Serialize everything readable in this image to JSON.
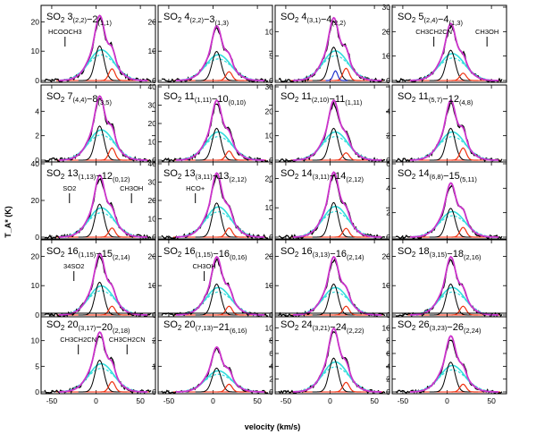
{
  "chart_data": {
    "type": "line",
    "xlabel": "velocity (km/s)",
    "ylabel": "T_A* (K)",
    "x_ticks": [
      -50,
      0,
      50
    ],
    "xlim": [
      -60,
      65
    ],
    "colors": {
      "observed": "#000000",
      "total_fit": "#cc33cc",
      "component_cyan": "#33dddd",
      "component_dashed": "#33dddd",
      "component_black": "#000000",
      "component_red": "#ee3311",
      "component_blue": "#2233cc",
      "baseline": "#ff2200"
    },
    "panels": [
      {
        "title": "SO2 3(2,2)−2(1,1)",
        "ylim": [
          0,
          25
        ],
        "yticks": [
          0,
          10,
          20
        ],
        "peak": 19,
        "bump": 4,
        "annotations": [
          {
            "text": "HCOOCH3",
            "v": -35
          }
        ]
      },
      {
        "title": "SO2 4(2,2)−3(1,3)",
        "ylim": [
          0,
          25
        ],
        "yticks": [
          0,
          10,
          20
        ],
        "peak": 16,
        "bump": 3,
        "annotations": []
      },
      {
        "title": "SO2 4(3,1)−4(2,2)",
        "ylim": [
          0,
          15
        ],
        "yticks": [
          0,
          5,
          10
        ],
        "peak": 11,
        "bump": 2.5,
        "annotations": []
      },
      {
        "title": "SO2 5(2,4)−4(1,3)",
        "ylim": [
          0,
          30
        ],
        "yticks": [
          0,
          10,
          20,
          30
        ],
        "peak": 20,
        "bump": 3,
        "annotations": [
          {
            "text": "CH3CH2CN",
            "v": -15
          },
          {
            "text": "CH3OH",
            "v": 45
          }
        ]
      },
      {
        "title": "SO2 7(4,4)−8(3,5)",
        "ylim": [
          0,
          6
        ],
        "yticks": [
          0,
          2,
          4
        ],
        "peak": 4.5,
        "bump": 1,
        "annotations": []
      },
      {
        "title": "SO2 11(1,11)−10(0,10)",
        "ylim": [
          0,
          40
        ],
        "yticks": [
          0,
          10,
          20,
          30,
          40
        ],
        "peak": 28,
        "bump": 5,
        "annotations": []
      },
      {
        "title": "SO2 11(2,10)−11(1,11)",
        "ylim": [
          0,
          30
        ],
        "yticks": [
          0,
          10,
          20,
          30
        ],
        "peak": 21,
        "bump": 3,
        "annotations": []
      },
      {
        "title": "SO2 11(5,7)−12(4,8)",
        "ylim": [
          0,
          6
        ],
        "yticks": [
          0,
          2,
          4
        ],
        "peak": 4.2,
        "bump": 1,
        "annotations": []
      },
      {
        "title": "SO2 13(1,13)−12(0,12)",
        "ylim": [
          0,
          40
        ],
        "yticks": [
          0,
          20,
          40
        ],
        "peak": 29,
        "bump": 5,
        "annotations": [
          {
            "text": "SO2",
            "v": -30
          },
          {
            "text": "CH3OH",
            "v": 40
          }
        ]
      },
      {
        "title": "SO2 13(3,11)−13(2,12)",
        "ylim": [
          0,
          40
        ],
        "yticks": [
          0,
          10,
          20,
          30,
          40
        ],
        "peak": 30,
        "bump": 5,
        "annotations": [
          {
            "text": "HCO+",
            "v": -20
          }
        ]
      },
      {
        "title": "SO2 14(3,11)−14(2,12)",
        "ylim": [
          0,
          25
        ],
        "yticks": [
          0,
          10,
          20
        ],
        "peak": 19,
        "bump": 3,
        "annotations": []
      },
      {
        "title": "SO2 14(6,8)−15(5,11)",
        "ylim": [
          0,
          6
        ],
        "yticks": [
          0,
          2,
          4,
          6
        ],
        "peak": 3.8,
        "bump": 0.8,
        "annotations": []
      },
      {
        "title": "SO2 16(1,15)−15(2,14)",
        "ylim": [
          0,
          25
        ],
        "yticks": [
          0,
          10,
          20
        ],
        "peak": 18,
        "bump": 3,
        "annotations": [
          {
            "text": "34SO2",
            "v": -25
          }
        ]
      },
      {
        "title": "SO2 16(1,15)−16(0,16)",
        "ylim": [
          0,
          25
        ],
        "yticks": [
          0,
          10,
          20
        ],
        "peak": 17,
        "bump": 3,
        "annotations": [
          {
            "text": "CH3OH",
            "v": -10
          }
        ]
      },
      {
        "title": "SO2 16(3,13)−16(2,14)",
        "ylim": [
          0,
          25
        ],
        "yticks": [
          0,
          10,
          20
        ],
        "peak": 17,
        "bump": 3,
        "annotations": []
      },
      {
        "title": "SO2 18(3,15)−18(2,16)",
        "ylim": [
          0,
          25
        ],
        "yticks": [
          0,
          10,
          20
        ],
        "peak": 17,
        "bump": 3,
        "annotations": []
      },
      {
        "title": "SO2 20(3,17)−20(2,18)",
        "ylim": [
          0,
          15
        ],
        "yticks": [
          0,
          5,
          10
        ],
        "peak": 10,
        "bump": 2,
        "annotations": [
          {
            "text": "CH3CH2CN",
            "v": -20
          },
          {
            "text": "CH3CH2CN",
            "v": 35
          }
        ]
      },
      {
        "title": "SO2 20(7,13)−21(6,16)",
        "ylim": [
          0,
          3
        ],
        "yticks": [
          0,
          1,
          2
        ],
        "peak": 1.5,
        "bump": 0.3,
        "annotations": []
      },
      {
        "title": "SO2 24(3,21)−24(2,22)",
        "ylim": [
          0,
          12
        ],
        "yticks": [
          0,
          2,
          4,
          6,
          8,
          10
        ],
        "peak": 8.5,
        "bump": 1.5,
        "annotations": []
      },
      {
        "title": "SO2 26(3,23)−26(2,24)",
        "ylim": [
          0,
          12
        ],
        "yticks": [
          0,
          2,
          4,
          6,
          8,
          10
        ],
        "peak": 7.5,
        "bump": 1.2,
        "annotations": []
      }
    ]
  }
}
